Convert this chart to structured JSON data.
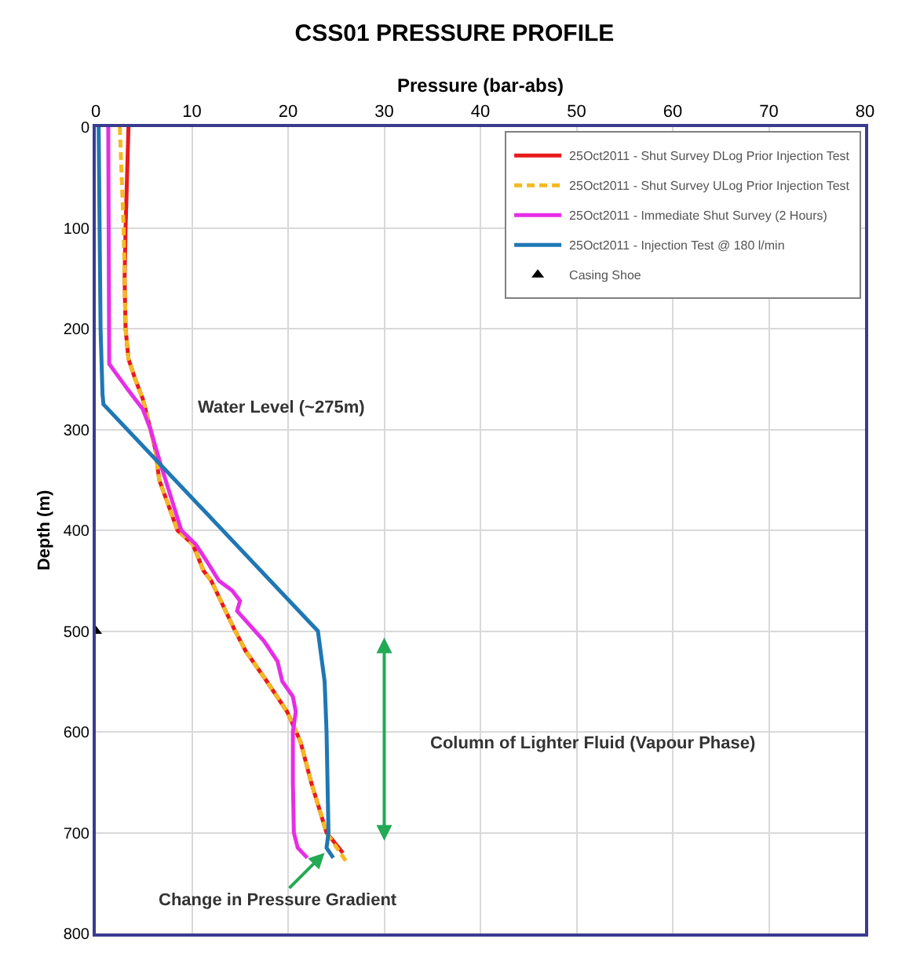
{
  "chart_data": {
    "type": "line",
    "title": "CSS01 PRESSURE PROFILE",
    "xlabel": "Pressure (bar-abs)",
    "ylabel": "Depth (m)",
    "xlim": [
      0,
      80
    ],
    "xticks": [
      0,
      10,
      20,
      30,
      40,
      50,
      60,
      70,
      80
    ],
    "ylim": [
      800,
      0
    ],
    "yticks": [
      0,
      100,
      200,
      300,
      400,
      500,
      600,
      700,
      800
    ],
    "grid": true,
    "legend": "top right",
    "series": [
      {
        "name": "25Oct2011 - Shut Survey DLog Prior Injection Test",
        "color": "#e8191c",
        "line_style": "solid",
        "marker": "none",
        "x": [
          3.4,
          3.1,
          3.0,
          3.1,
          3.4,
          4.1,
          4.9,
          5.7,
          6.2,
          6.6,
          8.5,
          10.1,
          11.2,
          12.0,
          14.5,
          15.6,
          17.8,
          19.9,
          21.3,
          22.4,
          24.0,
          25.7
        ],
        "values": [
          0,
          100,
          150,
          200,
          230,
          250,
          270,
          300,
          320,
          350,
          400,
          414,
          440,
          450,
          500,
          520,
          550,
          580,
          610,
          650,
          700,
          720
        ]
      },
      {
        "name": "25Oct2011 - Shut Survey ULog Prior Injection Test",
        "color": "#f5b921",
        "line_style": "dashed",
        "marker": "none",
        "x": [
          2.5,
          2.9,
          3.0,
          3.1,
          3.4,
          4.1,
          4.9,
          5.7,
          6.2,
          6.6,
          8.5,
          10.1,
          11.2,
          12.0,
          14.5,
          15.6,
          17.8,
          19.9,
          21.3,
          22.4,
          24.0,
          26.0
        ],
        "values": [
          0,
          100,
          150,
          200,
          230,
          250,
          270,
          300,
          320,
          350,
          400,
          414,
          440,
          450,
          500,
          520,
          550,
          580,
          610,
          650,
          700,
          728
        ]
      },
      {
        "name": "25Oct2011 - Immediate Shut Survey (2 Hours)",
        "color": "#e62ee6",
        "line_style": "solid",
        "marker": "none",
        "x": [
          1.3,
          1.4,
          3.3,
          4.9,
          5.7,
          6.6,
          8.9,
          10.4,
          11.5,
          12.8,
          14.2,
          15.0,
          14.7,
          16.1,
          17.5,
          18.9,
          19.4,
          20.5,
          20.8,
          20.5,
          20.5,
          20.6,
          21.0,
          22.0
        ],
        "values": [
          0,
          235,
          260,
          280,
          300,
          330,
          400,
          414,
          430,
          450,
          460,
          470,
          480,
          495,
          510,
          530,
          550,
          565,
          580,
          600,
          650,
          700,
          715,
          725
        ]
      },
      {
        "name": "25Oct2011 - Injection Test @ 180 l/min",
        "color": "#1f77b4",
        "line_style": "solid",
        "marker": "none",
        "x": [
          0.3,
          0.4,
          0.5,
          0.7,
          0.8,
          23.1,
          23.8,
          24.0,
          24.2,
          24.0,
          24.7
        ],
        "values": [
          0,
          100,
          200,
          265,
          275,
          500,
          550,
          600,
          700,
          715,
          725
        ]
      },
      {
        "name": "Casing Shoe",
        "type": "scatter",
        "color": "#000000",
        "marker": "triangle",
        "x": [
          0
        ],
        "values": [
          500
        ]
      }
    ],
    "annotations": [
      "Water Level (~275m)",
      "Column of Lighter Fluid (Vapour Phase)",
      {
        "text": "Change in Pressure Gradient",
        "x": 23.8,
        "y": 720
      }
    ]
  }
}
